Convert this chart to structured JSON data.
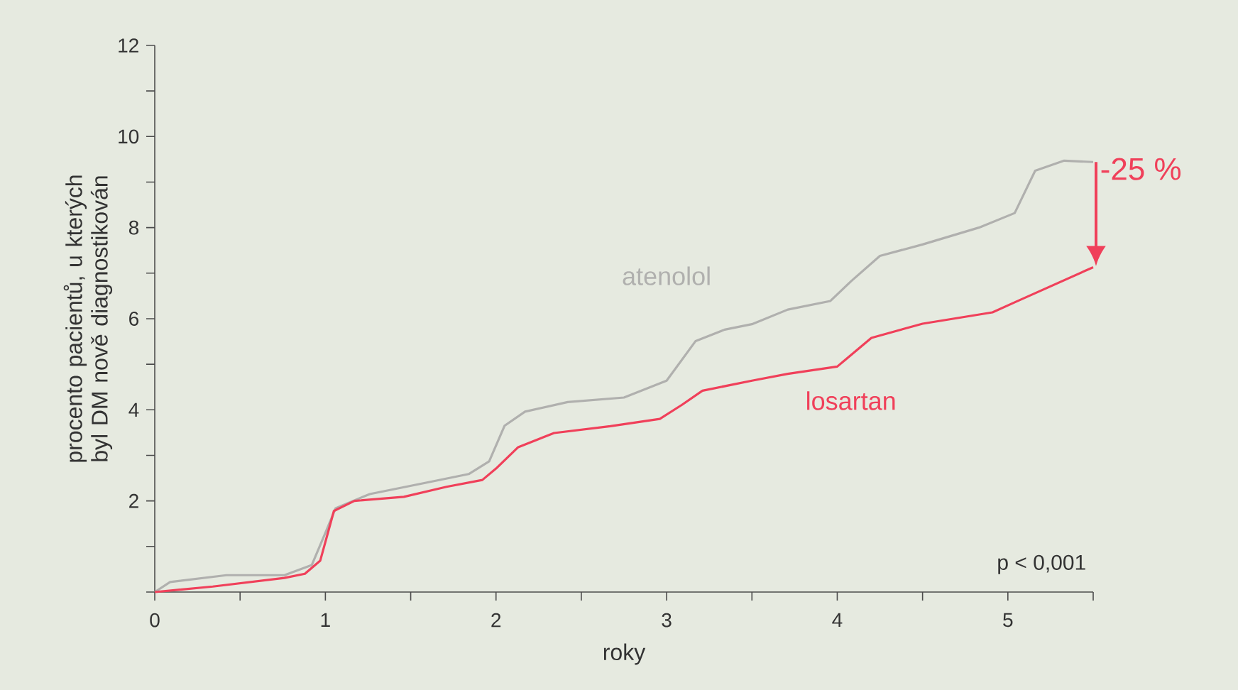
{
  "chart_data": {
    "type": "line",
    "xlabel": "roky",
    "ylabel": "procento pacientů, u kterých byl DM nově diagnostikován",
    "xlim": [
      0,
      5.5
    ],
    "ylim": [
      0,
      12
    ],
    "xticks": [
      0,
      {
        "value": 0.5,
        "label": null
      },
      1,
      {
        "value": 1.5,
        "label": null
      },
      2,
      {
        "value": 2.5,
        "label": null
      },
      3,
      {
        "value": 3.5,
        "label": null
      },
      4,
      {
        "value": 4.5,
        "label": null
      },
      5,
      {
        "value": 5.5,
        "label": null
      }
    ],
    "yticks": [
      {
        "value": 0,
        "label": null
      },
      {
        "value": 1,
        "label": null
      },
      2,
      {
        "value": 3,
        "label": null
      },
      4,
      {
        "value": 5,
        "label": null
      },
      6,
      {
        "value": 7,
        "label": null
      },
      8,
      {
        "value": 9,
        "label": null
      },
      10,
      {
        "value": 11,
        "label": null
      },
      12
    ],
    "series": [
      {
        "name": "atenolol",
        "color": "#b0b0ae",
        "x": [
          0,
          0.09,
          0.42,
          0.76,
          0.92,
          1.0,
          1.06,
          1.26,
          1.59,
          1.84,
          1.96,
          2.05,
          2.17,
          2.42,
          2.75,
          3.0,
          3.17,
          3.34,
          3.5,
          3.71,
          3.96,
          4.08,
          4.25,
          4.5,
          4.83,
          5.04,
          5.16,
          5.33,
          5.5
        ],
        "values": [
          0,
          0.22,
          0.37,
          0.37,
          0.59,
          1.3,
          1.84,
          2.15,
          2.4,
          2.59,
          2.87,
          3.65,
          3.96,
          4.17,
          4.27,
          4.64,
          5.51,
          5.76,
          5.88,
          6.2,
          6.39,
          6.82,
          7.38,
          7.63,
          8.0,
          8.32,
          9.25,
          9.47,
          9.44
        ]
      },
      {
        "name": "losartan",
        "color": "#f0405a",
        "x": [
          0,
          0.34,
          0.76,
          0.88,
          0.97,
          1.05,
          1.17,
          1.46,
          1.71,
          1.92,
          2.0,
          2.13,
          2.34,
          2.67,
          2.96,
          3.09,
          3.21,
          3.5,
          3.71,
          4.0,
          4.08,
          4.2,
          4.5,
          4.91,
          5.04,
          5.5
        ],
        "values": [
          0,
          0.12,
          0.31,
          0.4,
          0.69,
          1.78,
          2.0,
          2.09,
          2.31,
          2.46,
          2.71,
          3.18,
          3.49,
          3.64,
          3.8,
          4.11,
          4.42,
          4.64,
          4.79,
          4.95,
          5.2,
          5.58,
          5.89,
          6.14,
          6.36,
          7.13
        ]
      }
    ],
    "annotations": [
      {
        "text": "-25 %",
        "x": 5.5,
        "y": 9.44
      },
      "p < 0,001"
    ],
    "grid": false,
    "legend": false,
    "marker": "none",
    "line_style": "solid"
  }
}
